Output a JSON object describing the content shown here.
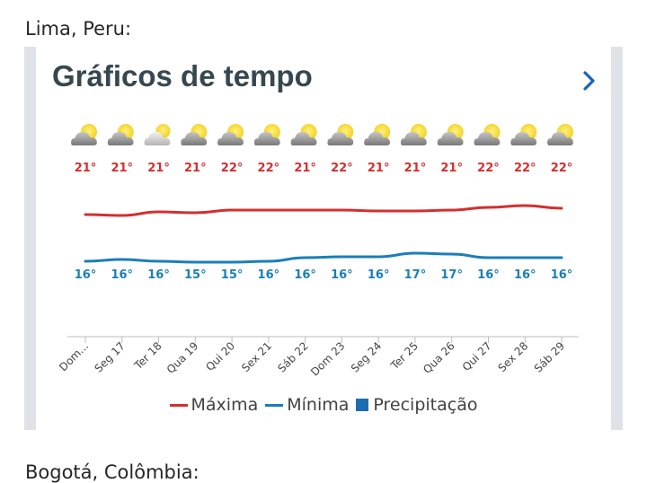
{
  "city": "Lima, Peru:",
  "next_city": "Bogotá, Colômbia:",
  "title": "Gráficos de tempo",
  "colors": {
    "max": "#d32f2f",
    "min": "#1a7fb8",
    "precip": "#1e6db3",
    "title": "#37474f",
    "chevron": "#1565c0"
  },
  "chart_data": {
    "type": "line",
    "categories": [
      "Dom...",
      "Seg 17",
      "Ter 18",
      "Qua 19",
      "Qui 20",
      "Sex 21",
      "Sáb 22",
      "Dom 23",
      "Seg 24",
      "Ter 25",
      "Qua 26",
      "Qui 27",
      "Sex 28",
      "Sáb 29"
    ],
    "icons": [
      "partly-cloudy-icon",
      "partly-cloudy-icon",
      "light-cloud-icon",
      "partly-cloudy-icon",
      "partly-cloudy-icon",
      "partly-cloudy-icon",
      "partly-cloudy-icon",
      "partly-cloudy-icon",
      "partly-cloudy-icon",
      "partly-cloudy-icon",
      "partly-cloudy-icon",
      "partly-cloudy-icon",
      "partly-cloudy-icon",
      "partly-cloudy-icon"
    ],
    "series": [
      {
        "name": "Máxima",
        "values": [
          21,
          21,
          21,
          21,
          22,
          22,
          21,
          22,
          21,
          21,
          21,
          22,
          22,
          22
        ],
        "curve": [
          21.1,
          21.0,
          21.4,
          21.3,
          21.6,
          21.6,
          21.6,
          21.6,
          21.5,
          21.5,
          21.6,
          21.9,
          22.1,
          21.8
        ]
      },
      {
        "name": "Mínima",
        "values": [
          16,
          16,
          16,
          15,
          15,
          16,
          16,
          16,
          16,
          17,
          17,
          16,
          16,
          16
        ],
        "curve": [
          15.9,
          16.1,
          15.9,
          15.8,
          15.8,
          15.9,
          16.3,
          16.4,
          16.4,
          16.8,
          16.7,
          16.3,
          16.3,
          16.3
        ]
      }
    ],
    "unit": "°",
    "legend": [
      "Máxima",
      "Mínima",
      "Precipitação"
    ],
    "legend_position": "bottom",
    "grid": false
  }
}
